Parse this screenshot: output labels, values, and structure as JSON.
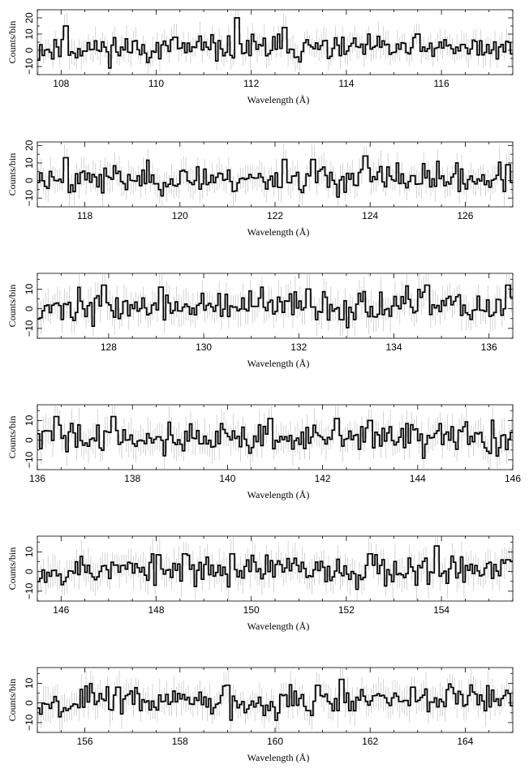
{
  "chart_data": [
    {
      "type": "line",
      "panel": 1,
      "xlabel": "Wavelength (Å)",
      "ylabel": "Counts/bin",
      "xlim": [
        107.5,
        117.5
      ],
      "ylim": [
        -15,
        25
      ],
      "xticks": [
        108,
        110,
        112,
        114,
        116
      ],
      "yticks": [
        -10,
        0,
        10,
        20
      ],
      "ytick_labels": [
        "−10",
        "0",
        "10",
        "20"
      ],
      "features": [
        [
          108.1,
          15
        ],
        [
          110.4,
          8
        ],
        [
          111.7,
          20
        ],
        [
          112.7,
          14
        ],
        [
          115.5,
          10
        ]
      ],
      "seed": 11
    },
    {
      "type": "line",
      "panel": 2,
      "xlabel": "Wavelength (Å)",
      "ylabel": "Counts/bin",
      "xlim": [
        117.0,
        127.0
      ],
      "ylim": [
        -15,
        22
      ],
      "xticks": [
        118,
        120,
        122,
        124,
        126
      ],
      "yticks": [
        -10,
        0,
        10,
        20
      ],
      "ytick_labels": [
        "−10",
        "0",
        "10",
        "20"
      ],
      "features": [
        [
          117.6,
          13
        ],
        [
          122.2,
          12
        ],
        [
          122.8,
          12
        ],
        [
          123.9,
          14
        ],
        [
          126.9,
          9
        ]
      ],
      "seed": 23
    },
    {
      "type": "line",
      "panel": 3,
      "xlabel": "Wavelength (Å)",
      "ylabel": "Counts/bin",
      "xlim": [
        126.5,
        136.5
      ],
      "ylim": [
        -15,
        18
      ],
      "xticks": [
        128,
        130,
        132,
        134,
        136
      ],
      "yticks": [
        -10,
        0,
        10
      ],
      "ytick_labels": [
        "−10",
        "0",
        "10"
      ],
      "features": [
        [
          127.9,
          12
        ],
        [
          129.1,
          11
        ],
        [
          132.2,
          10
        ],
        [
          134.7,
          12
        ],
        [
          136.4,
          12
        ]
      ],
      "seed": 37
    },
    {
      "type": "line",
      "panel": 4,
      "xlabel": "Wavelength (Å)",
      "ylabel": "Counts/bin",
      "xlim": [
        136.0,
        146.0
      ],
      "ylim": [
        -15,
        18
      ],
      "xticks": [
        136,
        138,
        140,
        142,
        144,
        146
      ],
      "yticks": [
        -10,
        0,
        10
      ],
      "ytick_labels": [
        "−10",
        "0",
        "10"
      ],
      "features": [
        [
          136.4,
          12
        ],
        [
          137.6,
          12
        ],
        [
          140.9,
          11
        ],
        [
          142.3,
          11
        ],
        [
          143.0,
          10
        ]
      ],
      "seed": 41
    },
    {
      "type": "line",
      "panel": 5,
      "xlabel": "Wavelength (Å)",
      "ylabel": "Counts/bin",
      "xlim": [
        145.5,
        155.5
      ],
      "ylim": [
        -15,
        18
      ],
      "xticks": [
        146,
        148,
        150,
        152,
        154
      ],
      "yticks": [
        -10,
        0,
        10
      ],
      "ytick_labels": [
        "−10",
        "0",
        "10"
      ],
      "features": [
        [
          148.6,
          9
        ],
        [
          149.6,
          9
        ],
        [
          152.5,
          9
        ],
        [
          153.9,
          13
        ],
        [
          155.4,
          6
        ]
      ],
      "seed": 53
    },
    {
      "type": "line",
      "panel": 6,
      "xlabel": "Wavelength (Å)",
      "ylabel": "Counts/bin",
      "xlim": [
        155.0,
        165.0
      ],
      "ylim": [
        -15,
        18
      ],
      "xticks": [
        156,
        158,
        160,
        162,
        164
      ],
      "yticks": [
        -10,
        0,
        10
      ],
      "ytick_labels": [
        "−10",
        "0",
        "10"
      ],
      "features": [
        [
          156.7,
          8
        ],
        [
          159.0,
          9
        ],
        [
          160.9,
          9
        ],
        [
          161.4,
          12
        ],
        [
          162.9,
          8
        ]
      ],
      "seed": 67
    }
  ]
}
